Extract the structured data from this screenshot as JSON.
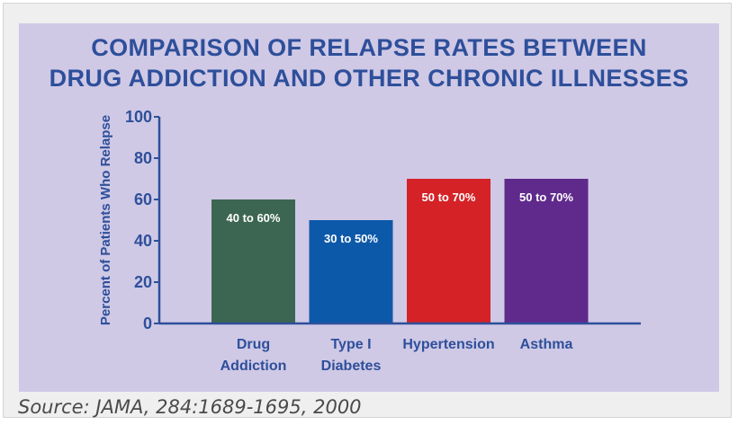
{
  "chart_data": {
    "type": "bar",
    "title": [
      "COMPARISON OF RELAPSE RATES BETWEEN",
      "DRUG ADDICTION AND OTHER CHRONIC ILLNESSES"
    ],
    "ylabel": "Percent of Patients Who Relapse",
    "xlabel": "",
    "ylim": [
      0,
      100
    ],
    "yticks": [
      0,
      20,
      40,
      60,
      80,
      100
    ],
    "categories": [
      [
        "Drug",
        "Addiction"
      ],
      [
        "Type I",
        "Diabetes"
      ],
      [
        "Hypertension"
      ],
      [
        "Asthma"
      ]
    ],
    "values": [
      60,
      50,
      70,
      70
    ],
    "data_labels": [
      "40 to 60%",
      "30 to 50%",
      "50 to 70%",
      "50 to 70%"
    ],
    "colors": [
      "#3c6651",
      "#0d59a9",
      "#d42227",
      "#5f2a8c"
    ],
    "grid": false,
    "legend": "none"
  },
  "source": "Source: JAMA, 284:1689-1695, 2000",
  "colors": {
    "title": "#2e4f9a",
    "axis": "#2e4f9a",
    "panel_background": "#cfc9e6"
  }
}
